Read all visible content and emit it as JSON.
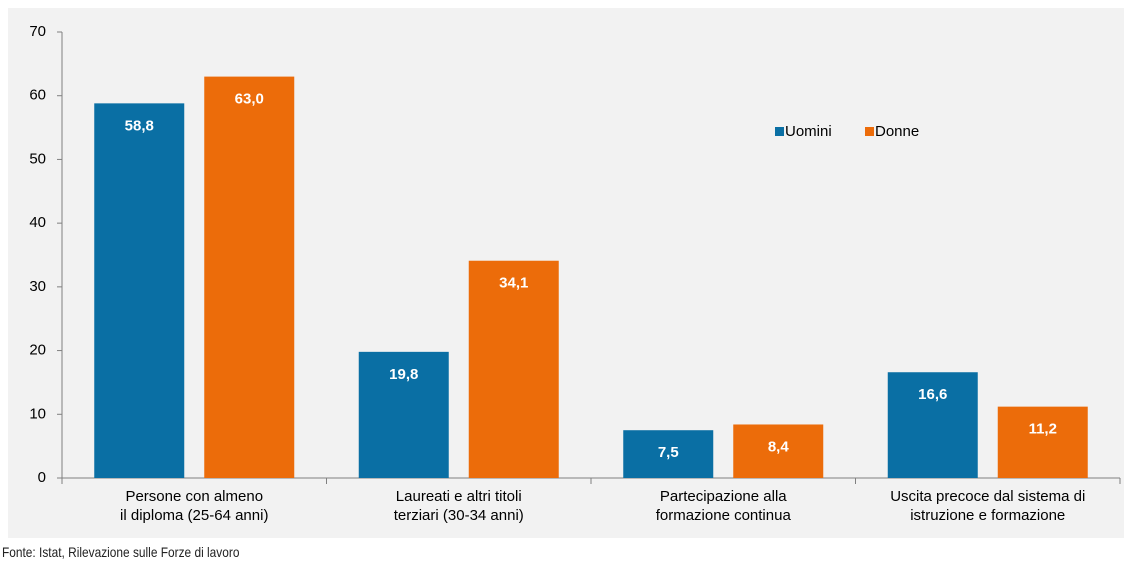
{
  "chart_data": {
    "type": "bar",
    "categories": [
      "Persone con almeno\nil diploma (25-64 anni)",
      "Laureati e altri titoli\nterziari (30-34 anni)",
      "Partecipazione alla\nformazione continua",
      "Uscita precoce dal sistema di\nistruzione e formazione"
    ],
    "series": [
      {
        "name": "Uomini",
        "color": "#0a6fa4",
        "values": [
          58.8,
          19.8,
          7.5,
          16.6
        ],
        "value_labels": [
          "58,8",
          "19,8",
          "7,5",
          "16,6"
        ]
      },
      {
        "name": "Donne",
        "color": "#ec6c0a",
        "values": [
          63.0,
          34.1,
          8.4,
          11.2
        ],
        "value_labels": [
          "63,0",
          "34,1",
          "8,4",
          "11,2"
        ]
      }
    ],
    "ylim": [
      0,
      70
    ],
    "yticks": [
      0,
      10,
      20,
      30,
      40,
      50,
      60,
      70
    ],
    "source": "Fonte: Istat, Rilevazione sulle Forze di lavoro"
  }
}
